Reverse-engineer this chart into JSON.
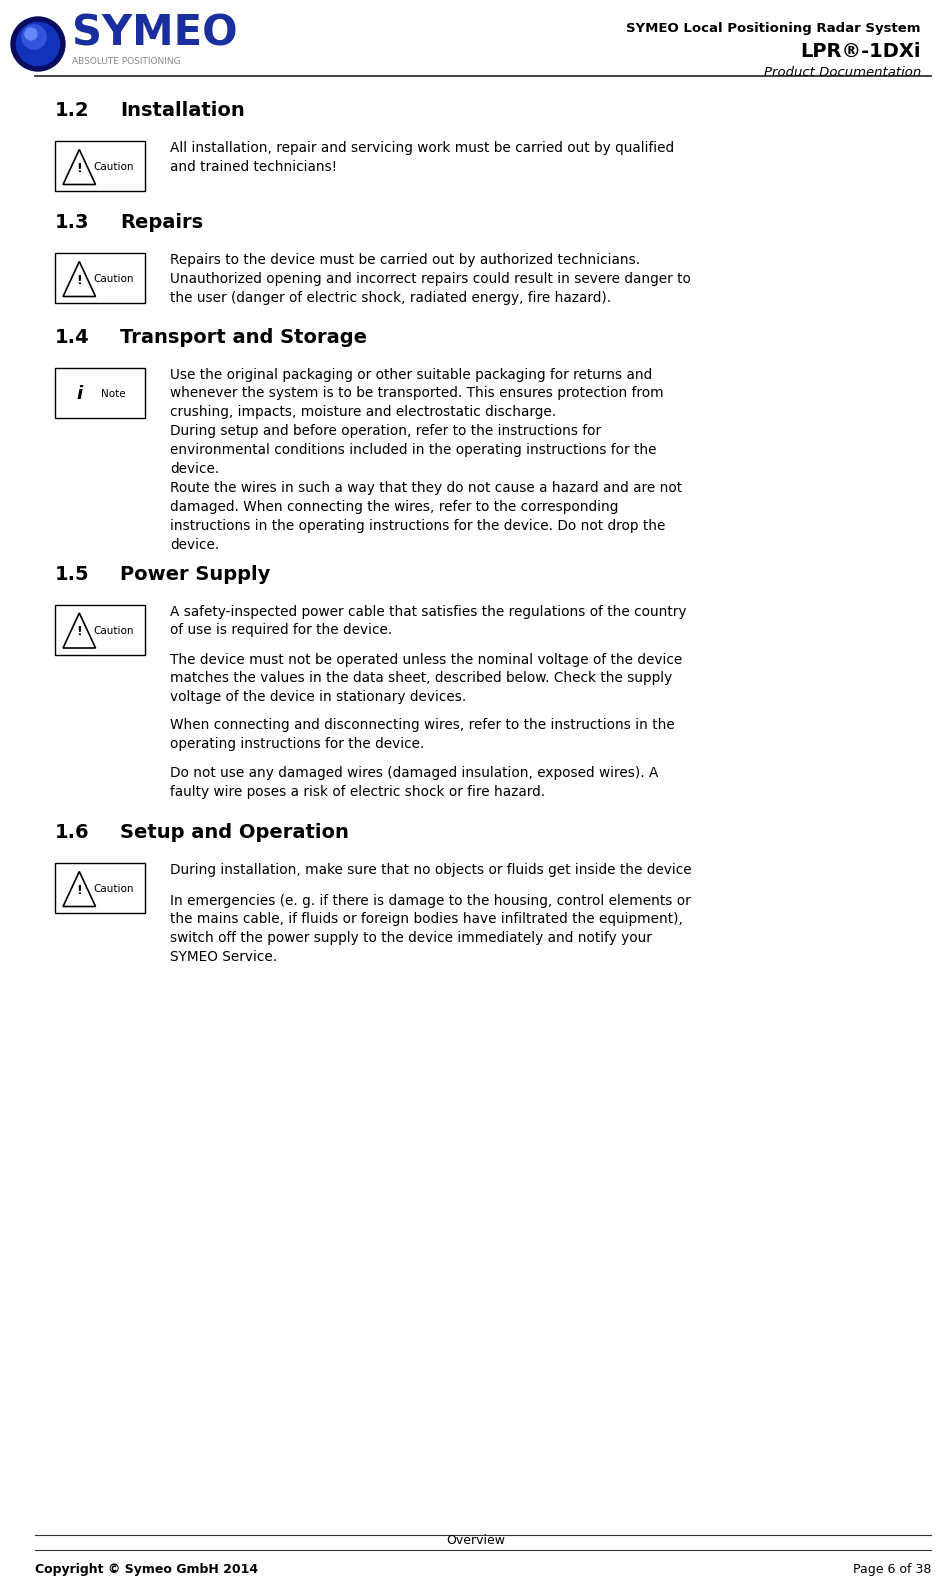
{
  "header_title_line1": "SYMEO Local Positioning Radar System",
  "header_title_line2": "LPR®-1DXi",
  "header_title_line3": "Product Documentation",
  "header_subtitle": "ABSOLUTE POSITIONING",
  "footer_center": "Overview",
  "footer_left": "Copyright © Symeo GmbH 2014",
  "footer_right": "Page 6 of 38",
  "sections": [
    {
      "number": "1.2",
      "title": "Installation",
      "icon_type": "caution",
      "paragraphs": [
        "All installation, repair and servicing work must be carried out by qualified\nand trained technicians!"
      ]
    },
    {
      "number": "1.3",
      "title": "Repairs",
      "icon_type": "caution",
      "paragraphs": [
        "Repairs to the device must be carried out by authorized technicians.\nUnauthorized opening and incorrect repairs could result in severe danger to\nthe user (danger of electric shock, radiated energy, fire hazard)."
      ]
    },
    {
      "number": "1.4",
      "title": "Transport and Storage",
      "icon_type": "note",
      "paragraphs": [
        "Use the original packaging or other suitable packaging for returns and\nwhenever the system is to be transported. This ensures protection from\ncrushing, impacts, moisture and electrostatic discharge.\nDuring setup and before operation, refer to the instructions for\nenvironmental conditions included in the operating instructions for the\ndevice.\nRoute the wires in such a way that they do not cause a hazard and are not\ndamaged. When connecting the wires, refer to the corresponding\ninstructions in the operating instructions for the device. Do not drop the\ndevice."
      ]
    },
    {
      "number": "1.5",
      "title": "Power Supply",
      "icon_type": "caution",
      "paragraphs": [
        "A safety-inspected power cable that satisfies the regulations of the country\nof use is required for the device.",
        "The device must not be operated unless the nominal voltage of the device\nmatches the values in the data sheet, described below. Check the supply\nvoltage of the device in stationary devices.",
        "When connecting and disconnecting wires, refer to the instructions in the\noperating instructions for the device.",
        "Do not use any damaged wires (damaged insulation, exposed wires). A\nfaulty wire poses a risk of electric shock or fire hazard."
      ]
    },
    {
      "number": "1.6",
      "title": "Setup and Operation",
      "icon_type": "caution",
      "paragraphs": [
        "During installation, make sure that no objects or fluids get inside the device",
        "In emergencies (e. g. if there is damage to the housing, control elements or\nthe mains cable, if fluids or foreign bodies have infiltrated the equipment),\nswitch off the power supply to the device immediately and notify your\nSYMEO Service."
      ]
    }
  ],
  "bg_color": "#ffffff",
  "text_color": "#000000",
  "symeo_blue": "#1a3399",
  "header_rule_color": "#555555",
  "footer_rule_color": "#555555"
}
